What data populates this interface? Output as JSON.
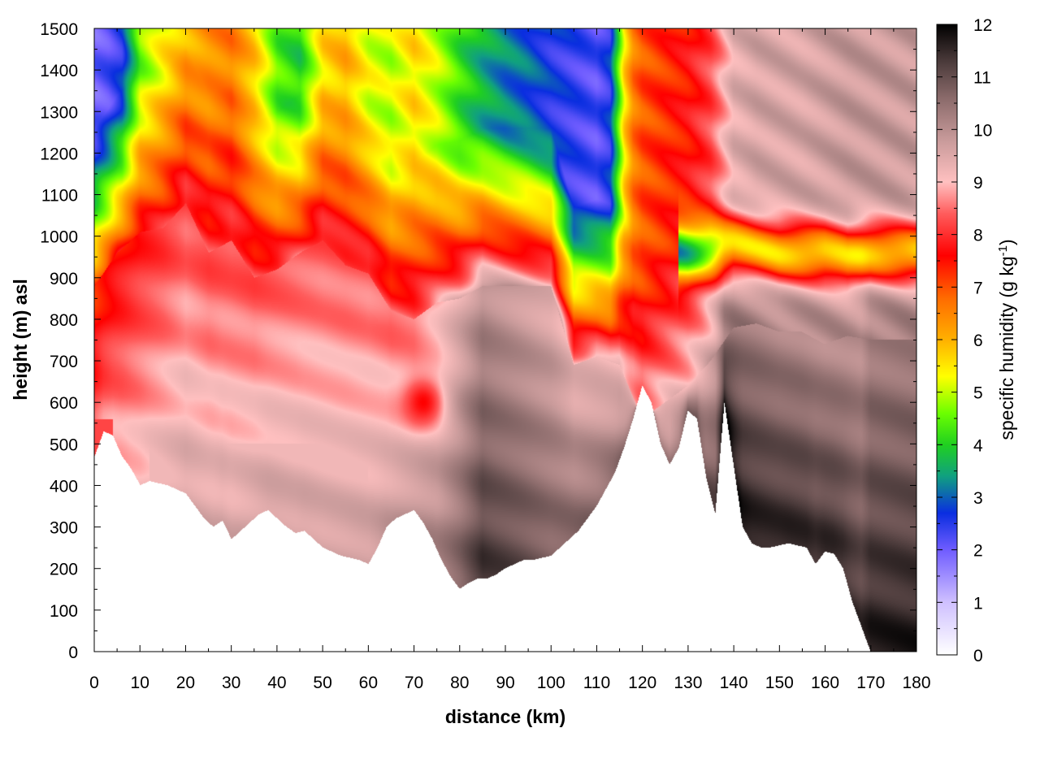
{
  "chart_data": {
    "type": "heatmap",
    "title": "",
    "xlabel": "distance (km)",
    "ylabel": "height (m) asl",
    "colorbar_label": "specific humidity (g kg",
    "colorbar_label_sup": "-1",
    "colorbar_label_close": ")",
    "xlim": [
      0,
      180
    ],
    "ylim": [
      0,
      1500
    ],
    "clim": [
      0,
      12
    ],
    "x_ticks": [
      0,
      10,
      20,
      30,
      40,
      50,
      60,
      70,
      80,
      90,
      100,
      110,
      120,
      130,
      140,
      150,
      160,
      170,
      180
    ],
    "x_tick_labels": [
      "0",
      "10",
      "20",
      "30",
      "40",
      "50",
      "60",
      "70",
      "80",
      "90",
      "100",
      "110",
      "120",
      "130",
      "140",
      "150",
      "160",
      "170",
      "180"
    ],
    "y_ticks": [
      0,
      100,
      200,
      300,
      400,
      500,
      600,
      700,
      800,
      900,
      1000,
      1100,
      1200,
      1300,
      1400,
      1500
    ],
    "y_tick_labels": [
      "0",
      "100",
      "200",
      "300",
      "400",
      "500",
      "600",
      "700",
      "800",
      "900",
      "1000",
      "1100",
      "1200",
      "1300",
      "1400",
      "1500"
    ],
    "c_ticks": [
      0,
      1,
      2,
      3,
      4,
      5,
      6,
      7,
      8,
      9,
      10,
      11,
      12
    ],
    "c_tick_labels": [
      "0",
      "1",
      "2",
      "3",
      "4",
      "5",
      "6",
      "7",
      "8",
      "9",
      "10",
      "11",
      "12"
    ],
    "grid": true,
    "colormap": [
      {
        "v": 0,
        "color": "#ffffff"
      },
      {
        "v": 1,
        "color": "#cfc0ff"
      },
      {
        "v": 2,
        "color": "#6f5cff"
      },
      {
        "v": 2.7,
        "color": "#0a2ee0"
      },
      {
        "v": 3.4,
        "color": "#10a080"
      },
      {
        "v": 4,
        "color": "#20d020"
      },
      {
        "v": 4.6,
        "color": "#6cff00"
      },
      {
        "v": 5.3,
        "color": "#ffff00"
      },
      {
        "v": 6,
        "color": "#ffb000"
      },
      {
        "v": 6.8,
        "color": "#ff6a00"
      },
      {
        "v": 7.6,
        "color": "#ff0000"
      },
      {
        "v": 8.4,
        "color": "#ff5c5c"
      },
      {
        "v": 9,
        "color": "#ffc0c0"
      },
      {
        "v": 9.8,
        "color": "#c89a9a"
      },
      {
        "v": 10.6,
        "color": "#8a6a6a"
      },
      {
        "v": 11.3,
        "color": "#4a3a3a"
      },
      {
        "v": 12,
        "color": "#000000"
      }
    ],
    "terrain": {
      "x": [
        0,
        2,
        4,
        6,
        8,
        10,
        12,
        14,
        16,
        18,
        20,
        22,
        24,
        26,
        28,
        30,
        32,
        34,
        36,
        38,
        40,
        42,
        44,
        46,
        48,
        50,
        52,
        54,
        56,
        58,
        60,
        62,
        64,
        66,
        68,
        70,
        72,
        74,
        76,
        78,
        80,
        82,
        84,
        86,
        88,
        90,
        92,
        94,
        96,
        98,
        100,
        102,
        104,
        106,
        108,
        110,
        112,
        114,
        116,
        118,
        120,
        122,
        124,
        126,
        128,
        130,
        132,
        134,
        136,
        138,
        140,
        142,
        144,
        146,
        148,
        150,
        152,
        154,
        156,
        158,
        160,
        162,
        164,
        166,
        168,
        170,
        172,
        174,
        176,
        178,
        180
      ],
      "y": [
        470,
        530,
        520,
        470,
        440,
        400,
        410,
        405,
        400,
        390,
        380,
        350,
        320,
        300,
        315,
        270,
        290,
        310,
        330,
        340,
        320,
        300,
        285,
        290,
        270,
        250,
        240,
        230,
        225,
        220,
        210,
        250,
        300,
        320,
        330,
        340,
        310,
        270,
        220,
        180,
        150,
        165,
        175,
        175,
        185,
        200,
        210,
        220,
        220,
        225,
        230,
        250,
        270,
        290,
        320,
        350,
        390,
        430,
        490,
        560,
        640,
        600,
        500,
        450,
        490,
        580,
        560,
        420,
        330,
        600,
        450,
        300,
        260,
        250,
        250,
        255,
        260,
        255,
        250,
        210,
        240,
        235,
        200,
        120,
        60,
        0,
        0,
        0,
        0,
        0,
        0
      ]
    },
    "surface_humidity": {
      "x": [
        0,
        10,
        20,
        30,
        40,
        50,
        60,
        65,
        70,
        75,
        80,
        85,
        90,
        100,
        110,
        118,
        120,
        125,
        130,
        133,
        136,
        138,
        140,
        150,
        160,
        168,
        170,
        180
      ],
      "v": [
        8.6,
        9.2,
        9.6,
        9.6,
        9.7,
        9.7,
        9.8,
        9.8,
        9.9,
        10.2,
        10.8,
        11.4,
        11.2,
        10.8,
        10.6,
        10.5,
        10.4,
        10.5,
        10.6,
        10.8,
        11.2,
        11.9,
        11.8,
        11.6,
        11.5,
        11.4,
        11.7,
        11.7
      ]
    },
    "moist_top": {
      "x": [
        0,
        5,
        10,
        15,
        20,
        25,
        30,
        35,
        40,
        45,
        50,
        55,
        60,
        65,
        70,
        75,
        80,
        85,
        90,
        95,
        100,
        105,
        110,
        115,
        120,
        125,
        130,
        135,
        140,
        145,
        150,
        155,
        160,
        165,
        170,
        180
      ],
      "y": [
        880,
        960,
        1010,
        1020,
        1080,
        960,
        990,
        900,
        920,
        960,
        990,
        930,
        910,
        820,
        800,
        840,
        850,
        880,
        880,
        880,
        880,
        690,
        710,
        690,
        560,
        600,
        640,
        700,
        780,
        790,
        770,
        770,
        740,
        760,
        750,
        750
      ]
    },
    "upper_dry": {
      "x": [
        0,
        3,
        6,
        10,
        15,
        20,
        25,
        30,
        35,
        40,
        45,
        50,
        55,
        60,
        65,
        70,
        75,
        80,
        85,
        90,
        95,
        100,
        105,
        110,
        113,
        116,
        118,
        120,
        125,
        130,
        135,
        140,
        145,
        150,
        155,
        160,
        165,
        170,
        180
      ],
      "v": [
        2.0,
        2.2,
        2.6,
        4.6,
        5.4,
        6.0,
        6.4,
        6.6,
        5.8,
        4.4,
        4.0,
        5.6,
        6.0,
        5.2,
        5.0,
        5.6,
        5.0,
        4.2,
        3.6,
        3.2,
        3.0,
        2.6,
        2.4,
        2.2,
        2.6,
        5.5,
        6.6,
        7.0,
        7.3,
        7.6,
        8.2,
        9.4,
        9.6,
        9.6,
        9.6,
        9.7,
        9.8,
        9.8,
        9.8
      ]
    },
    "dry_layer_center": {
      "x": [
        130,
        140,
        150,
        160,
        165,
        170,
        180
      ],
      "y": [
        960,
        980,
        960,
        960,
        950,
        960,
        960
      ]
    },
    "annotations": [
      {
        "x": 72,
        "y": 600,
        "value": 7.6,
        "note": "moist pocket"
      }
    ]
  }
}
